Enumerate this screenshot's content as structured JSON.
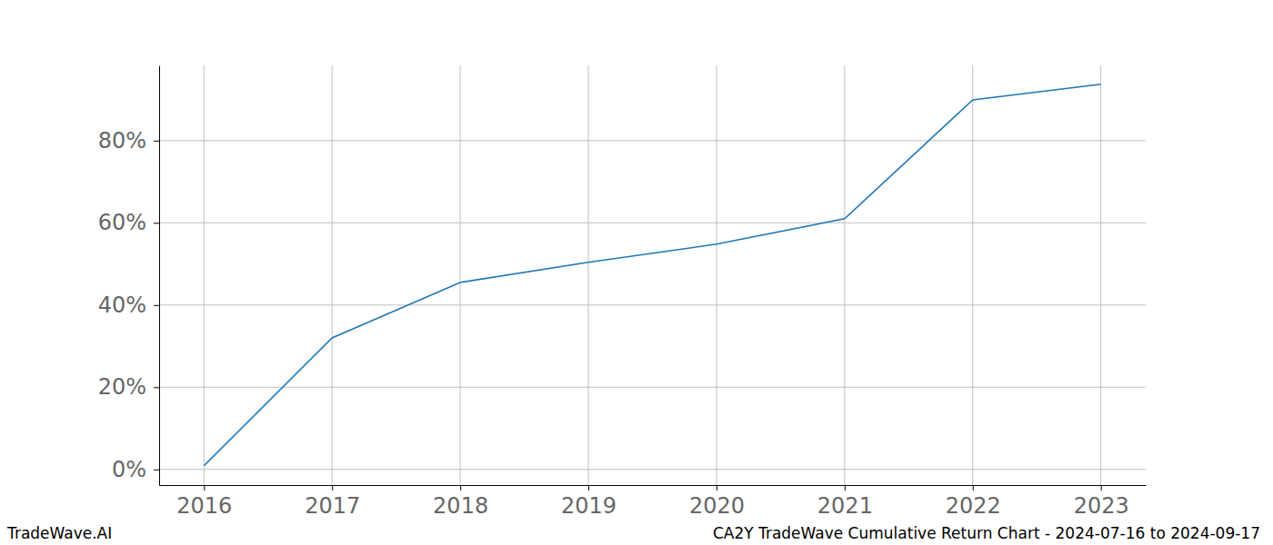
{
  "chart_data": {
    "type": "line",
    "title": "CA2Y TradeWave Cumulative Return Chart - 2024-07-16 to 2024-09-17",
    "annotations": [
      "TradeWave.AI"
    ],
    "x": [
      2016,
      2017,
      2018,
      2019,
      2020,
      2021,
      2022,
      2023
    ],
    "values": [
      0.9,
      32.0,
      45.5,
      50.4,
      54.8,
      61.0,
      89.9,
      93.7
    ],
    "color": "#1f77b4",
    "xlim": [
      2015.65,
      2023.35
    ],
    "ylim": [
      -3.8,
      98.3
    ],
    "xticks": [
      2016,
      2017,
      2018,
      2019,
      2020,
      2021,
      2022,
      2023
    ],
    "yticks": [
      {
        "value": 0,
        "label": "0%"
      },
      {
        "value": 20,
        "label": "20%"
      },
      {
        "value": 40,
        "label": "40%"
      },
      {
        "value": 60,
        "label": "60%"
      },
      {
        "value": 80,
        "label": "80%"
      }
    ],
    "grid": true
  }
}
